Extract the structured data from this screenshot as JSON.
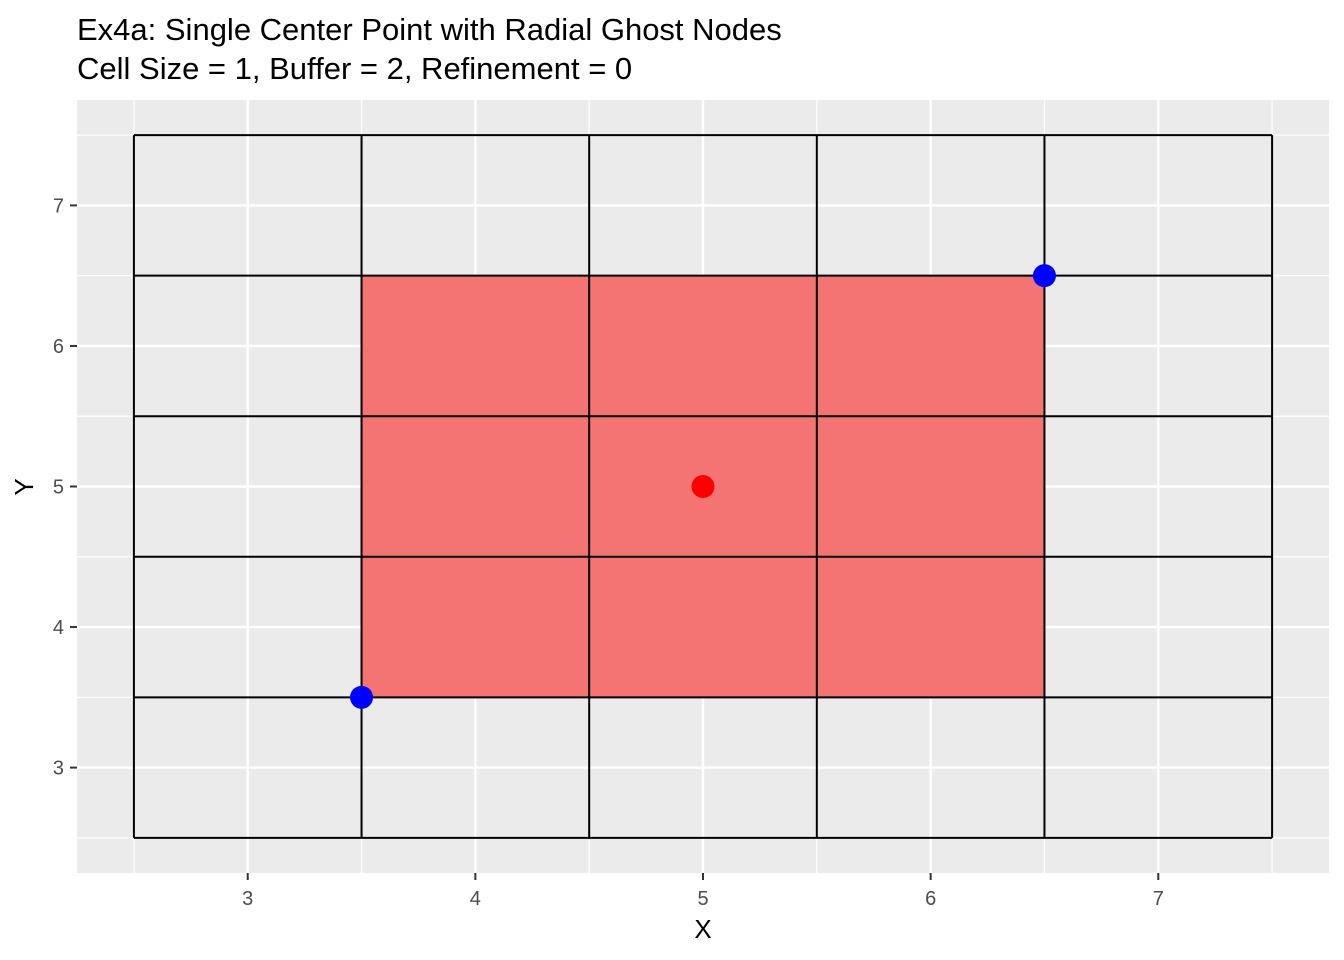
{
  "chart_data": {
    "type": "scatter",
    "title": "Ex4a: Single Center Point with Radial Ghost Nodes",
    "subtitle": "Cell Size = 1, Buffer = 2, Refinement = 0",
    "xlabel": "X",
    "ylabel": "Y",
    "xlim": [
      2.25,
      7.75
    ],
    "ylim": [
      2.25,
      7.75
    ],
    "x_ticks": [
      3,
      4,
      5,
      6,
      7
    ],
    "y_ticks": [
      3,
      4,
      5,
      6,
      7
    ],
    "x_tick_labels": [
      "3",
      "4",
      "5",
      "6",
      "7"
    ],
    "y_tick_labels": [
      "3",
      "4",
      "5",
      "6",
      "7"
    ],
    "grid": true,
    "legend": "none",
    "cell_grid": {
      "x_edges": [
        2.5,
        3.5,
        4.5,
        5.5,
        6.5,
        7.5
      ],
      "y_edges": [
        2.5,
        3.5,
        4.5,
        5.5,
        6.5,
        7.5
      ]
    },
    "filled_region": {
      "xmin": 3.5,
      "xmax": 6.5,
      "ymin": 3.5,
      "ymax": 6.5,
      "color": "#f47474"
    },
    "points": [
      {
        "x": 5.0,
        "y": 5.0,
        "color": "#ff0000"
      },
      {
        "x": 3.5,
        "y": 3.5,
        "color": "#0000ff"
      },
      {
        "x": 6.5,
        "y": 6.5,
        "color": "#0000ff"
      }
    ],
    "colors": {
      "panel_background": "#ebebeb",
      "grid_line": "#ffffff",
      "cell_line": "#000000"
    }
  }
}
